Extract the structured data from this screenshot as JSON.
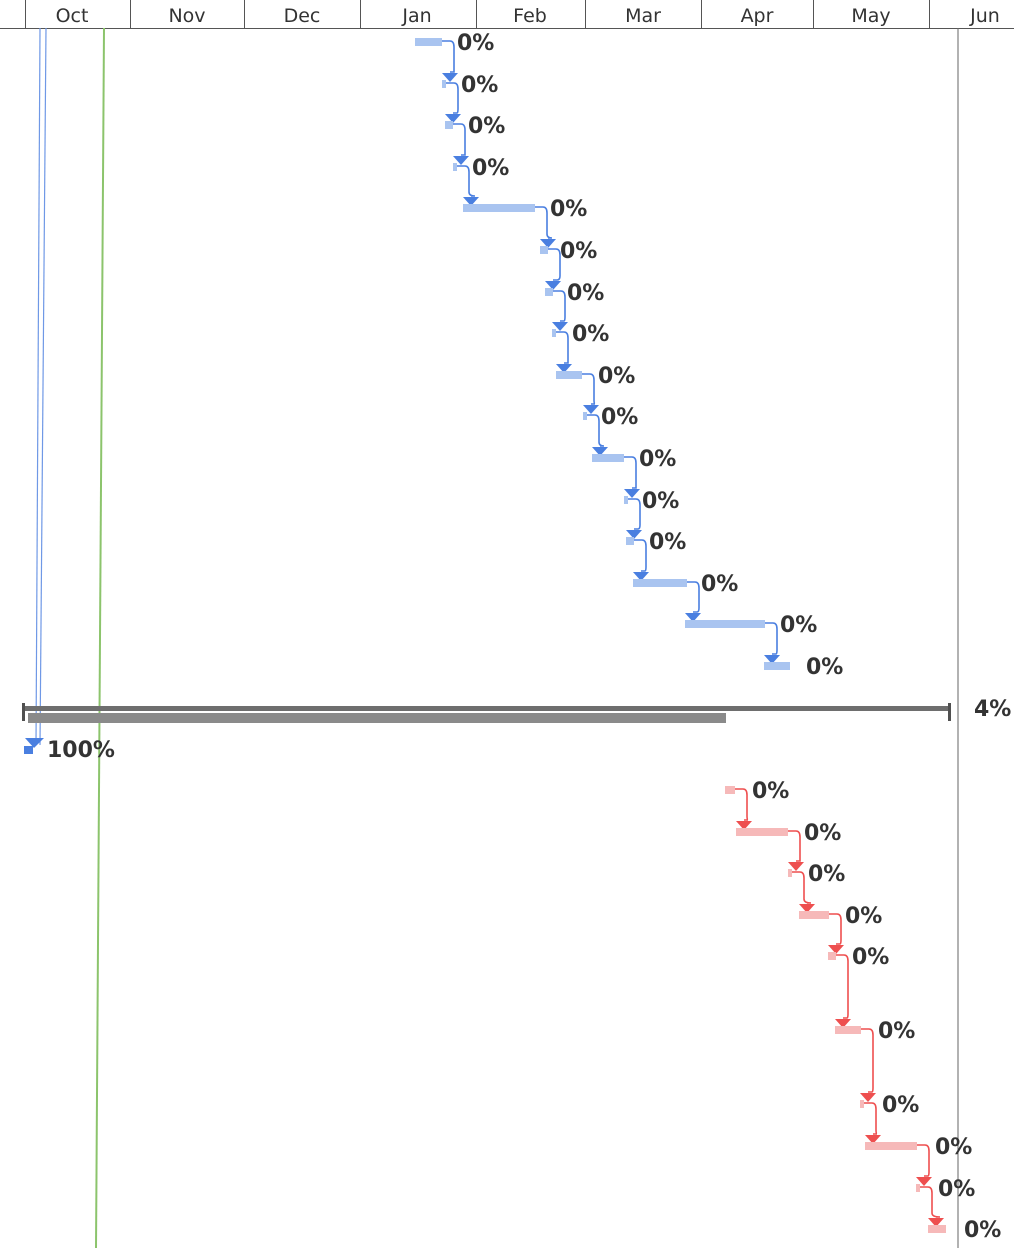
{
  "timescale": {
    "months": [
      "Oct",
      "Nov",
      "Dec",
      "Jan",
      "Feb",
      "Mar",
      "Apr",
      "May",
      "Jun"
    ]
  },
  "colors": {
    "blue_bar": "#a9c4f0",
    "blue_link": "#4a7fe0",
    "red_bar": "#f6b9b9",
    "red_link": "#ee4f4f",
    "summary": "#808080",
    "status_line": "#8cc46c"
  },
  "summary_task": {
    "percent_label": "4%",
    "percent_complete": 4
  },
  "milestone_task": {
    "percent_label": "100%",
    "percent_complete": 100
  },
  "blue_tasks": [
    {
      "pct": "0%"
    },
    {
      "pct": "0%"
    },
    {
      "pct": "0%"
    },
    {
      "pct": "0%"
    },
    {
      "pct": "0%"
    },
    {
      "pct": "0%"
    },
    {
      "pct": "0%"
    },
    {
      "pct": "0%"
    },
    {
      "pct": "0%"
    },
    {
      "pct": "0%"
    },
    {
      "pct": "0%"
    },
    {
      "pct": "0%"
    },
    {
      "pct": "0%"
    },
    {
      "pct": "0%"
    },
    {
      "pct": "0%"
    },
    {
      "pct": "0%"
    }
  ],
  "red_tasks": [
    {
      "pct": "0%"
    },
    {
      "pct": "0%"
    },
    {
      "pct": "0%"
    },
    {
      "pct": "0%"
    },
    {
      "pct": "0%"
    },
    {
      "pct": "0%"
    },
    {
      "pct": "0%"
    },
    {
      "pct": "0%"
    },
    {
      "pct": "0%"
    },
    {
      "pct": "0%"
    }
  ]
}
